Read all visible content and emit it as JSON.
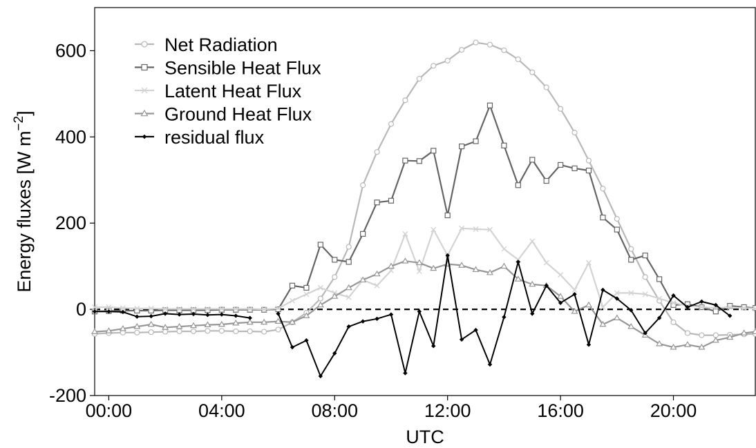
{
  "chart_data": {
    "type": "line",
    "title": "",
    "xlabel": "UTC",
    "ylabel": "Energy fluxes [W m",
    "ylabel_superscript": "−2",
    "ylabel_close": "]",
    "xlim": [
      -0.5,
      22.9
    ],
    "ylim": [
      -200,
      700
    ],
    "xticks": [
      0,
      4,
      8,
      12,
      16,
      20
    ],
    "xtick_labels": [
      "00:00",
      "04:00",
      "08:00",
      "12:00",
      "16:00",
      "20:00"
    ],
    "yticks": [
      -200,
      0,
      200,
      400,
      600
    ],
    "ytick_labels": [
      "-200",
      "0",
      "200",
      "400",
      "600"
    ],
    "grid": false,
    "legend_position": "top-left",
    "reference_line": {
      "y": 0,
      "style": "dashed",
      "color": "#000000"
    },
    "series": [
      {
        "name": "Net Radiation",
        "color": "#b8b8b8",
        "marker": "circle",
        "points": [
          [
            -0.5,
            -57
          ],
          [
            0,
            -55
          ],
          [
            0.5,
            -54
          ],
          [
            1,
            -54
          ],
          [
            1.5,
            -53
          ],
          [
            2,
            -52
          ],
          [
            2.5,
            -51
          ],
          [
            3,
            -51
          ],
          [
            3.5,
            -50
          ],
          [
            4,
            -50
          ],
          [
            4.5,
            -51
          ],
          [
            5,
            -51
          ],
          [
            5.5,
            -52
          ],
          [
            6,
            -47
          ],
          [
            6.5,
            -30
          ],
          [
            7,
            -8
          ],
          [
            7.5,
            25
          ],
          [
            8,
            75
          ],
          [
            8.5,
            145
          ],
          [
            9,
            288
          ],
          [
            9.5,
            365
          ],
          [
            10,
            430
          ],
          [
            10.5,
            485
          ],
          [
            11,
            535
          ],
          [
            11.5,
            565
          ],
          [
            12,
            577
          ],
          [
            12.5,
            602
          ],
          [
            13,
            619
          ],
          [
            13.5,
            614
          ],
          [
            14,
            601
          ],
          [
            14.5,
            580
          ],
          [
            15,
            550
          ],
          [
            15.5,
            515
          ],
          [
            16,
            465
          ],
          [
            16.5,
            410
          ],
          [
            17,
            345
          ],
          [
            17.5,
            280
          ],
          [
            18,
            210
          ],
          [
            18.5,
            140
          ],
          [
            19,
            75
          ],
          [
            19.5,
            20
          ],
          [
            20,
            -30
          ],
          [
            20.5,
            -55
          ],
          [
            21,
            -60
          ],
          [
            21.5,
            -60
          ],
          [
            22,
            -59
          ],
          [
            22.5,
            -58
          ],
          [
            22.9,
            -57
          ]
        ]
      },
      {
        "name": "Sensible Heat Flux",
        "color": "#646464",
        "marker": "square",
        "points": [
          [
            -0.5,
            -5
          ],
          [
            0,
            -4
          ],
          [
            0.5,
            -3
          ],
          [
            1,
            -3
          ],
          [
            1.5,
            -3
          ],
          [
            2,
            -2
          ],
          [
            2.5,
            -2
          ],
          [
            3,
            -2
          ],
          [
            3.5,
            -2
          ],
          [
            4,
            -1
          ],
          [
            4.5,
            -1
          ],
          [
            5,
            -1
          ],
          [
            5.5,
            -1
          ],
          [
            6,
            0
          ],
          [
            6.5,
            55
          ],
          [
            7,
            50
          ],
          [
            7.5,
            150
          ],
          [
            8,
            115
          ],
          [
            8.5,
            110
          ],
          [
            9,
            175
          ],
          [
            9.5,
            248
          ],
          [
            10,
            252
          ],
          [
            10.5,
            345
          ],
          [
            11,
            344
          ],
          [
            11.5,
            368
          ],
          [
            12,
            218
          ],
          [
            12.5,
            378
          ],
          [
            13,
            390
          ],
          [
            13.5,
            473
          ],
          [
            14,
            380
          ],
          [
            14.5,
            288
          ],
          [
            15,
            347
          ],
          [
            15.5,
            298
          ],
          [
            16,
            335
          ],
          [
            16.5,
            327
          ],
          [
            17,
            322
          ],
          [
            17.5,
            213
          ],
          [
            18,
            185
          ],
          [
            18.5,
            115
          ],
          [
            19,
            125
          ],
          [
            19.5,
            70
          ],
          [
            20,
            10
          ],
          [
            20.5,
            12
          ],
          [
            21,
            5
          ],
          [
            21.5,
            -5
          ],
          [
            22,
            8
          ],
          [
            22.5,
            5
          ],
          [
            22.9,
            3
          ]
        ]
      },
      {
        "name": "Latent Heat Flux",
        "color": "#d3d3d3",
        "marker": "cross",
        "points": [
          [
            -0.5,
            5
          ],
          [
            0,
            5
          ],
          [
            0.5,
            3
          ],
          [
            1,
            2
          ],
          [
            1.5,
            2
          ],
          [
            2,
            1
          ],
          [
            2.5,
            1
          ],
          [
            3,
            1
          ],
          [
            3.5,
            1
          ],
          [
            4,
            1
          ],
          [
            4.5,
            1
          ],
          [
            5,
            1
          ],
          [
            5.5,
            0
          ],
          [
            6,
            2
          ],
          [
            6.5,
            20
          ],
          [
            7,
            35
          ],
          [
            7.5,
            50
          ],
          [
            8,
            38
          ],
          [
            8.5,
            28
          ],
          [
            9,
            68
          ],
          [
            9.5,
            55
          ],
          [
            10,
            90
          ],
          [
            10.5,
            175
          ],
          [
            11,
            88
          ],
          [
            11.5,
            185
          ],
          [
            12,
            125
          ],
          [
            12.5,
            188
          ],
          [
            13,
            186
          ],
          [
            13.5,
            185
          ],
          [
            14,
            140
          ],
          [
            14.5,
            115
          ],
          [
            15,
            158
          ],
          [
            15.5,
            108
          ],
          [
            16,
            80
          ],
          [
            16.5,
            45
          ],
          [
            17,
            108
          ],
          [
            17.5,
            5
          ],
          [
            18,
            38
          ],
          [
            18.5,
            38
          ],
          [
            19,
            35
          ],
          [
            19.5,
            25
          ],
          [
            20,
            15
          ],
          [
            20.5,
            8
          ],
          [
            21,
            5
          ],
          [
            21.5,
            3
          ],
          [
            22,
            5
          ],
          [
            22.5,
            3
          ],
          [
            22.9,
            2
          ]
        ]
      },
      {
        "name": "Ground Heat Flux",
        "color": "#969696",
        "marker": "triangle",
        "points": [
          [
            -0.5,
            -52
          ],
          [
            0,
            -50
          ],
          [
            0.5,
            -45
          ],
          [
            1,
            -40
          ],
          [
            1.5,
            -35
          ],
          [
            2,
            -42
          ],
          [
            2.5,
            -40
          ],
          [
            3,
            -38
          ],
          [
            3.5,
            -36
          ],
          [
            4,
            -35
          ],
          [
            4.5,
            -32
          ],
          [
            5,
            -30
          ],
          [
            5.5,
            -30
          ],
          [
            6,
            -28
          ],
          [
            6.5,
            -30
          ],
          [
            7,
            -15
          ],
          [
            7.5,
            10
          ],
          [
            8,
            30
          ],
          [
            8.5,
            50
          ],
          [
            9,
            68
          ],
          [
            9.5,
            82
          ],
          [
            10,
            100
          ],
          [
            10.5,
            112
          ],
          [
            11,
            108
          ],
          [
            11.5,
            95
          ],
          [
            12,
            105
          ],
          [
            12.5,
            102
          ],
          [
            13,
            92
          ],
          [
            13.5,
            85
          ],
          [
            14,
            100
          ],
          [
            14.5,
            70
          ],
          [
            15,
            58
          ],
          [
            15.5,
            55
          ],
          [
            16,
            30
          ],
          [
            16.5,
            -5
          ],
          [
            17,
            10
          ],
          [
            17.5,
            -35
          ],
          [
            18,
            -20
          ],
          [
            18.5,
            -40
          ],
          [
            19,
            -60
          ],
          [
            19.5,
            -80
          ],
          [
            20,
            -88
          ],
          [
            20.5,
            -82
          ],
          [
            21,
            -88
          ],
          [
            21.5,
            -72
          ],
          [
            22,
            -65
          ],
          [
            22.5,
            -55
          ],
          [
            22.9,
            -52
          ]
        ]
      },
      {
        "name": "residual flux",
        "color": "#000000",
        "marker": "diamond",
        "points": [
          [
            -0.5,
            -5
          ],
          [
            0,
            -5
          ],
          [
            0.5,
            -6
          ],
          [
            1,
            -17
          ],
          [
            1.5,
            -16
          ],
          [
            2,
            -10
          ],
          [
            2.5,
            -12
          ],
          [
            3,
            -11
          ],
          [
            3.5,
            -13
          ],
          [
            4,
            -12
          ],
          [
            4.5,
            -15
          ],
          [
            5,
            -20
          ],
          [
            6,
            -10
          ],
          [
            6.5,
            -88
          ],
          [
            7,
            -72
          ],
          [
            7.5,
            -155
          ],
          [
            8,
            -102
          ],
          [
            8.5,
            -40
          ],
          [
            9,
            -28
          ],
          [
            9.5,
            -22
          ],
          [
            10,
            -12
          ],
          [
            10.5,
            -148
          ],
          [
            11,
            -5
          ],
          [
            11.5,
            -85
          ],
          [
            12,
            125
          ],
          [
            12.5,
            -70
          ],
          [
            13,
            -48
          ],
          [
            13.5,
            -128
          ],
          [
            14,
            -18
          ],
          [
            14.5,
            110
          ],
          [
            15,
            -10
          ],
          [
            15.5,
            55
          ],
          [
            16,
            15
          ],
          [
            16.5,
            35
          ],
          [
            17,
            -82
          ],
          [
            17.5,
            45
          ],
          [
            18,
            25
          ],
          [
            18.5,
            -2
          ],
          [
            19,
            -55
          ],
          [
            19.5,
            -20
          ],
          [
            20,
            32
          ],
          [
            20.5,
            5
          ],
          [
            21,
            18
          ],
          [
            21.5,
            10
          ],
          [
            22,
            -15
          ]
        ]
      }
    ]
  }
}
